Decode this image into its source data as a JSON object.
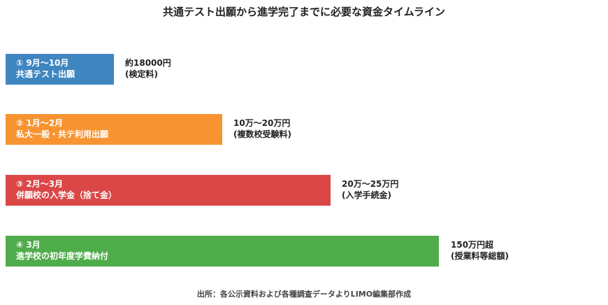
{
  "title": "共通テスト出願から進学完了までに必要な資金タイムライン",
  "steps": [
    {
      "label1": "① 9月～10月",
      "label2": "共通テスト出願",
      "amount1": "約18000円",
      "amount2": "(検定料)",
      "color": "#3f86c0"
    },
    {
      "label1": "② 1月～2月",
      "label2": "私大一般・共テ利用出願",
      "amount1": "10万～20万円",
      "amount2": "(複数校受験料)",
      "color": "#f79431"
    },
    {
      "label1": "③ 2月～3月",
      "label2": "併願校の入学金（捨て金）",
      "amount1": "20万～25万円",
      "amount2": "(入学手続金)",
      "color": "#db4646"
    },
    {
      "label1": "④ 3月",
      "label2": "進学校の初年度学費納付",
      "amount1": "150万円超",
      "amount2": "(授業料等総額)",
      "color": "#4fac4a"
    }
  ],
  "source": "出所：各公示資料および各種調査データよりLIMO編集部作成"
}
